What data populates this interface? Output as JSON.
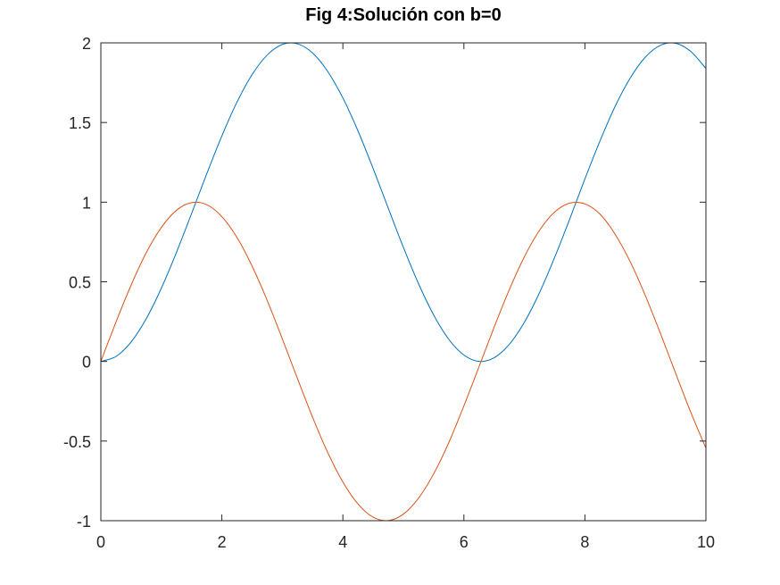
{
  "chart_data": {
    "type": "line",
    "title": "Fig 4:Solución con b=0",
    "xlabel": "",
    "ylabel": "",
    "xlim": [
      0,
      10
    ],
    "ylim": [
      -1,
      2
    ],
    "x_ticks": [
      0,
      2,
      4,
      6,
      8,
      10
    ],
    "y_ticks": [
      -1,
      -0.5,
      0,
      0.5,
      1,
      1.5,
      2
    ],
    "x_tick_labels": [
      "0",
      "2",
      "4",
      "6",
      "8",
      "10"
    ],
    "y_tick_labels": [
      "-1",
      "-0.5",
      "0",
      "0.5",
      "1",
      "1.5",
      "2"
    ],
    "grid": false,
    "legend": "none",
    "series": [
      {
        "color": "#0072BD",
        "x": [
          0,
          0.25,
          0.5,
          0.75,
          1,
          1.25,
          1.5,
          1.75,
          2,
          2.25,
          2.5,
          2.75,
          3,
          3.25,
          3.5,
          3.75,
          4,
          4.25,
          4.5,
          4.75,
          5,
          5.25,
          5.5,
          5.75,
          6,
          6.25,
          6.5,
          6.75,
          7,
          7.25,
          7.5,
          7.75,
          8,
          8.25,
          8.5,
          8.75,
          9,
          9.25,
          9.5,
          9.75,
          10
        ],
        "values": [
          0,
          0.031,
          0.122,
          0.268,
          0.46,
          0.685,
          0.929,
          1.178,
          1.416,
          1.628,
          1.801,
          1.924,
          1.99,
          1.994,
          1.936,
          1.82,
          1.654,
          1.447,
          1.211,
          0.962,
          0.716,
          0.488,
          0.292,
          0.139,
          0.04,
          0.0,
          0.023,
          0.107,
          0.246,
          0.432,
          0.653,
          0.895,
          1.146,
          1.385,
          1.602,
          1.78,
          1.911,
          1.985,
          1.997,
          1.946,
          1.839
        ]
      },
      {
        "color": "#D95319",
        "x": [
          0,
          0.25,
          0.5,
          0.75,
          1,
          1.25,
          1.5,
          1.75,
          2,
          2.25,
          2.5,
          2.75,
          3,
          3.25,
          3.5,
          3.75,
          4,
          4.25,
          4.5,
          4.75,
          5,
          5.25,
          5.5,
          5.75,
          6,
          6.25,
          6.5,
          6.75,
          7,
          7.25,
          7.5,
          7.75,
          8,
          8.25,
          8.5,
          8.75,
          9,
          9.25,
          9.5,
          9.75,
          10
        ],
        "values": [
          0,
          0.247,
          0.479,
          0.682,
          0.841,
          0.949,
          0.997,
          0.984,
          0.909,
          0.778,
          0.598,
          0.382,
          0.141,
          -0.108,
          -0.351,
          -0.572,
          -0.757,
          -0.895,
          -0.978,
          -0.999,
          -0.959,
          -0.859,
          -0.706,
          -0.51,
          -0.279,
          -0.033,
          0.215,
          0.45,
          0.657,
          0.823,
          0.938,
          0.994,
          0.989,
          0.925,
          0.798,
          0.625,
          0.412,
          0.174,
          -0.075,
          -0.32,
          -0.544
        ]
      }
    ]
  }
}
